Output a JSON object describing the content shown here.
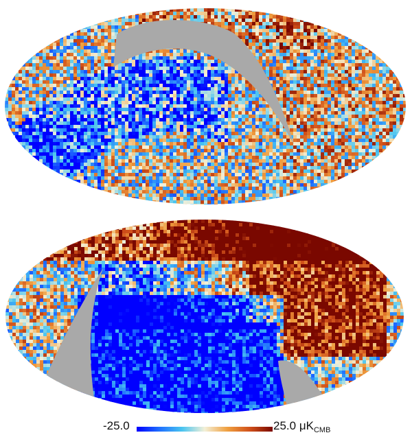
{
  "figure": {
    "maps": [
      {
        "name": "top-map",
        "mask": "crescent-upper-right"
      },
      {
        "name": "bottom-map",
        "mask": "wedge-lower-left"
      }
    ],
    "colorbar": {
      "min_label": "-25.0",
      "max_label_value": "25.0",
      "max_label_unit": "μK",
      "max_label_sub": "CMB",
      "colors": [
        "#0000ff",
        "#1f6fff",
        "#49c4f0",
        "#f3f0d8",
        "#f0a040",
        "#d0501a",
        "#7a0800"
      ]
    },
    "mask_color": "#a9a9a9"
  }
}
